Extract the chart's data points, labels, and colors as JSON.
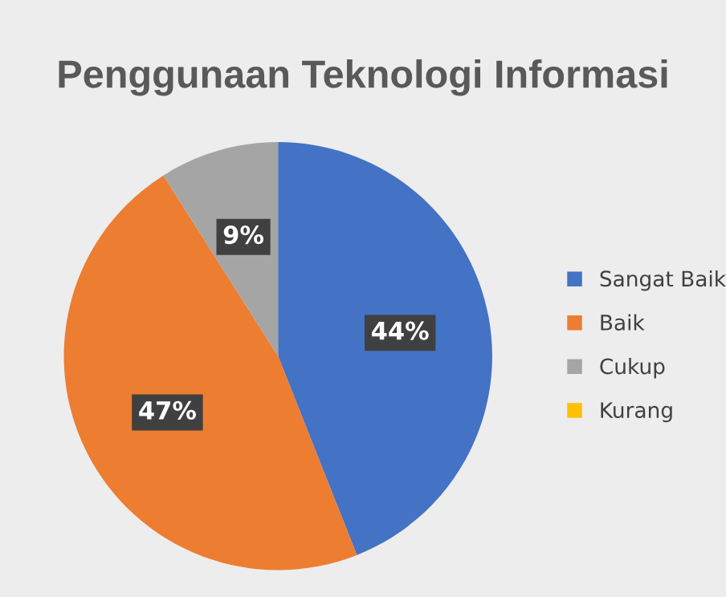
{
  "chart_data": {
    "type": "pie",
    "title": "Penggunaan Teknologi Informasi",
    "categories": [
      "Sangat Baik",
      "Baik",
      "Cukup",
      "Kurang"
    ],
    "values": [
      44,
      47,
      9,
      0
    ],
    "colors": [
      "#4472c4",
      "#ed7d31",
      "#a5a5a5",
      "#ffc000"
    ],
    "value_labels": [
      "44%",
      "47%",
      "9%",
      null
    ],
    "legend": "right"
  }
}
